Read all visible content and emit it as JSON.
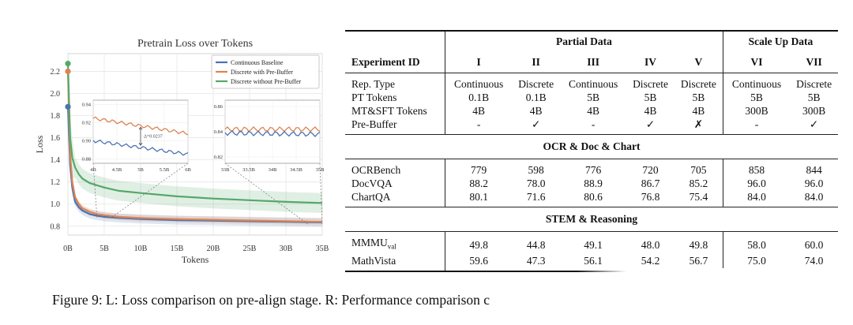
{
  "chart_data": {
    "type": "line",
    "title": "Pretrain Loss over Tokens",
    "xlabel": "Tokens",
    "ylabel": "Loss",
    "xlim": [
      0,
      35
    ],
    "ylim": [
      0.72,
      2.36
    ],
    "x_ticks": [
      "0B",
      "5B",
      "10B",
      "15B",
      "20B",
      "25B",
      "30B",
      "35B"
    ],
    "y_ticks": [
      "0.8",
      "1.0",
      "1.2",
      "1.4",
      "1.6",
      "1.8",
      "2.0",
      "2.2"
    ],
    "grid": true,
    "legend_position": "top-right",
    "series": [
      {
        "name": "Continuous Baseline",
        "color": "#4c72b0",
        "x": [
          0,
          0.3,
          0.6,
          1,
          1.5,
          2,
          3,
          4,
          5,
          7,
          10,
          15,
          20,
          25,
          30,
          35
        ],
        "y": [
          1.88,
          1.35,
          1.15,
          1.02,
          0.97,
          0.94,
          0.91,
          0.895,
          0.885,
          0.875,
          0.865,
          0.855,
          0.85,
          0.845,
          0.84,
          0.835
        ]
      },
      {
        "name": "Discrete with Pre-Buffer",
        "color": "#dd8452",
        "x": [
          0,
          0.3,
          0.6,
          1,
          1.5,
          2,
          3,
          4,
          5,
          7,
          10,
          15,
          20,
          25,
          30,
          35
        ],
        "y": [
          2.2,
          1.45,
          1.2,
          1.06,
          1.0,
          0.96,
          0.93,
          0.91,
          0.9,
          0.885,
          0.875,
          0.865,
          0.858,
          0.852,
          0.846,
          0.84
        ]
      },
      {
        "name": "Discrete without Pre-Buffer",
        "color": "#55a868",
        "x": [
          0,
          0.3,
          0.6,
          1,
          1.5,
          2,
          3,
          5,
          7,
          10,
          15,
          20,
          25,
          30,
          35
        ],
        "y": [
          2.27,
          1.6,
          1.42,
          1.33,
          1.27,
          1.23,
          1.19,
          1.15,
          1.12,
          1.1,
          1.07,
          1.05,
          1.035,
          1.02,
          1.01
        ]
      }
    ],
    "insets": [
      {
        "x_ticks": [
          "4B",
          "4.5B",
          "5B",
          "5.5B",
          "6B"
        ],
        "y_ticks": [
          "0.94",
          "0.92",
          "0.90",
          "0.88"
        ],
        "annotation": "Δ=0.0237"
      },
      {
        "x_ticks": [
          "33B",
          "33.5B",
          "34B",
          "34.5B",
          "35B"
        ],
        "y_ticks": [
          "0.86",
          "0.84",
          "0.82"
        ]
      }
    ]
  },
  "table": {
    "group_headers": {
      "partial": "Partial Data",
      "scale": "Scale Up Data"
    },
    "id_header": "Experiment ID",
    "ids": [
      "I",
      "II",
      "III",
      "IV",
      "V",
      "VI",
      "VII"
    ],
    "config_rows": [
      {
        "label": "Rep. Type",
        "values": [
          "Continuous",
          "Discrete",
          "Continuous",
          "Discrete",
          "Discrete",
          "Continuous",
          "Discrete"
        ]
      },
      {
        "label": "PT Tokens",
        "values": [
          "0.1B",
          "0.1B",
          "5B",
          "5B",
          "5B",
          "5B",
          "5B"
        ]
      },
      {
        "label": "MT&SFT Tokens",
        "values": [
          "4B",
          "4B",
          "4B",
          "4B",
          "4B",
          "300B",
          "300B"
        ]
      },
      {
        "label": "Pre-Buffer",
        "values": [
          "-",
          "✓",
          "-",
          "✓",
          "✗",
          "-",
          "✓"
        ]
      }
    ],
    "sections": [
      {
        "title": "OCR & Doc & Chart",
        "rows": [
          {
            "label": "OCRBench",
            "values": [
              "779",
              "598",
              "776",
              "720",
              "705",
              "858",
              "844"
            ]
          },
          {
            "label": "DocVQA",
            "values": [
              "88.2",
              "78.0",
              "88.9",
              "86.7",
              "85.2",
              "96.0",
              "96.0"
            ]
          },
          {
            "label": "ChartQA",
            "values": [
              "80.1",
              "71.6",
              "80.6",
              "76.8",
              "75.4",
              "84.0",
              "84.0"
            ]
          }
        ]
      },
      {
        "title": "STEM & Reasoning",
        "rows": [
          {
            "label": "MMMU",
            "label_sub": "val",
            "values": [
              "49.8",
              "44.8",
              "49.1",
              "48.0",
              "49.8",
              "58.0",
              "60.0"
            ]
          },
          {
            "label": "MathVista",
            "values": [
              "59.6",
              "47.3",
              "56.1",
              "54.2",
              "56.7",
              "75.0",
              "74.0"
            ]
          }
        ]
      }
    ]
  },
  "caption": "Figure 9: L: Loss comparison on pre-align stage. R: Performance comparison c"
}
